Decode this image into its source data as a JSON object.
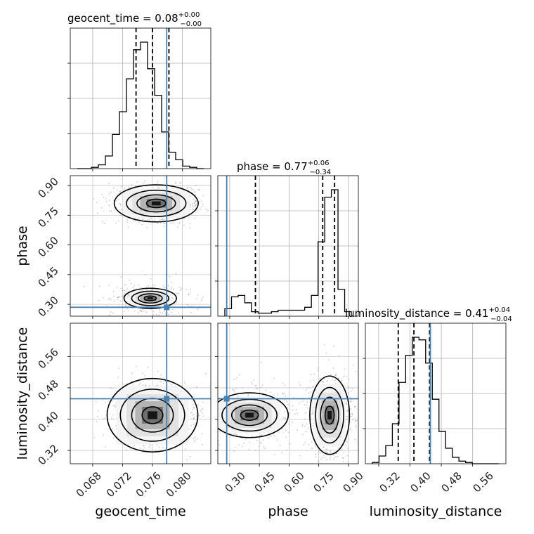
{
  "chart_data": {
    "type": "corner",
    "parameters": [
      "geocent_time",
      "phase",
      "luminosity_distance"
    ],
    "ranges": {
      "geocent_time": [
        0.065,
        0.0838
      ],
      "phase": [
        0.24,
        0.95
      ],
      "luminosity_distance": [
        0.286,
        0.645
      ]
    },
    "truths": {
      "geocent_time": 0.0779,
      "phase": 0.285,
      "luminosity_distance": 0.452
    },
    "quantiles": {
      "geocent_time": [
        0.0738,
        0.076,
        0.0782
      ],
      "phase": [
        0.43,
        0.77,
        0.83
      ],
      "luminosity_distance": [
        0.37,
        0.41,
        0.45
      ]
    },
    "titles": {
      "geocent_time": {
        "name": "geocent_time",
        "median": "0.08",
        "plus": "+0.00",
        "minus": "−0.00"
      },
      "phase": {
        "name": "phase",
        "median": "0.77",
        "plus": "+0.06",
        "minus": "−0.34"
      },
      "luminosity_distance": {
        "name": "luminosity_distance",
        "median": "0.41",
        "plus": "+0.04",
        "minus": "−0.04"
      }
    },
    "ticks": {
      "geocent_time": [
        "0.068",
        "0.072",
        "0.076",
        "0.080"
      ],
      "phase": [
        "0.30",
        "0.45",
        "0.60",
        "0.75",
        "0.90"
      ],
      "luminosity_distance": [
        "0.32",
        "0.40",
        "0.48",
        "0.56"
      ]
    },
    "hist_1d": {
      "geocent_time": [
        0,
        0,
        1,
        3,
        10,
        27,
        45,
        71,
        94,
        100,
        79,
        58,
        29,
        13,
        7,
        2,
        1,
        0
      ],
      "phase": [
        5,
        13,
        14,
        9,
        3,
        2,
        2,
        3,
        4,
        4,
        4,
        4,
        6,
        14,
        50,
        80,
        85,
        18,
        3
      ],
      "luminosity_distance": [
        1,
        6,
        14,
        31,
        63,
        84,
        98,
        96,
        78,
        50,
        25,
        12,
        5,
        2,
        1,
        0,
        0,
        0,
        0
      ]
    },
    "modes_2d": [
      {
        "panel": "phase_vs_geocent_time",
        "x": 0.0765,
        "y": 0.81,
        "sx": 0.0024,
        "sy": 0.04,
        "weight": 0.72
      },
      {
        "panel": "phase_vs_geocent_time",
        "x": 0.0757,
        "y": 0.33,
        "sx": 0.0024,
        "sy": 0.035,
        "weight": 0.28
      },
      {
        "panel": "luminosity_distance_vs_geocent_time",
        "x": 0.076,
        "y": 0.41,
        "sx": 0.0022,
        "sy": 0.034,
        "weight": 1.0
      },
      {
        "panel": "luminosity_distance_vs_phase",
        "x": 0.805,
        "y": 0.41,
        "sx": 0.045,
        "sy": 0.045,
        "weight": 0.65
      },
      {
        "panel": "luminosity_distance_vs_phase",
        "x": 0.4,
        "y": 0.41,
        "sx": 0.12,
        "sy": 0.035,
        "weight": 0.35
      }
    ],
    "truth_color": "#4682b4",
    "line_color": "#000000",
    "grid": true
  }
}
